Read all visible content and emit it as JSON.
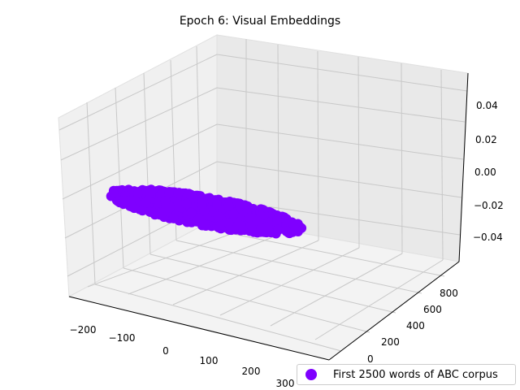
{
  "chart_data": {
    "type": "scatter",
    "projection": "3d",
    "title": "Epoch 6: Visual Embeddings",
    "xlabel": "",
    "ylabel": "",
    "zlabel": "",
    "x_ticks": [
      "−200",
      "−100",
      "0",
      "100",
      "200",
      "300"
    ],
    "y_ticks": [
      "0",
      "200",
      "400",
      "600",
      "800"
    ],
    "z_ticks": [
      "−0.04",
      "−0.02",
      "0.00",
      "0.02",
      "0.04"
    ],
    "xlim": [
      -230,
      330
    ],
    "ylim": [
      -100,
      920
    ],
    "zlim": [
      -0.055,
      0.055
    ],
    "grid": true,
    "legend": {
      "label": "First 2500 words of ABC corpus",
      "location": "lower-right"
    },
    "series": [
      {
        "label": "First 2500 words of ABC corpus",
        "color": "#7f00ff",
        "point_count": 2500,
        "z_value": 0,
        "x_range": [
          -200,
          130
        ],
        "y_range": [
          0,
          700
        ]
      }
    ]
  }
}
